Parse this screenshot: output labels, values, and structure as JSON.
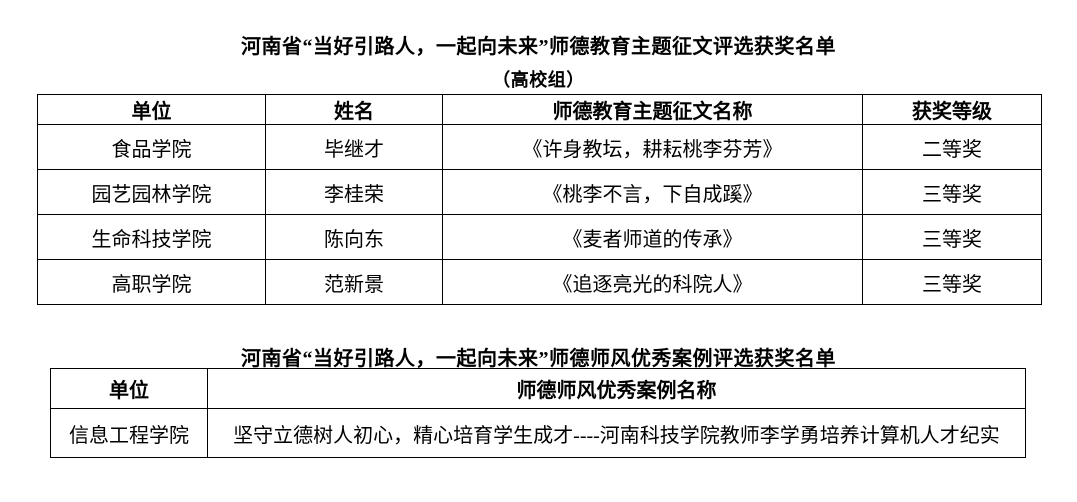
{
  "page": {
    "background_color": "#ffffff",
    "text_color": "#000000",
    "border_color": "#000000"
  },
  "section1": {
    "title": "河南省“当好引路人，一起向未来”师德教育主题征文评选获奖名单",
    "subtitle": "（高校组）",
    "table": {
      "headers": [
        "单位",
        "姓名",
        "师德教育主题征文名称",
        "获奖等级"
      ],
      "rows": [
        [
          "食品学院",
          "毕继才",
          "《许身教坛，耕耘桃李芬芳》",
          "二等奖"
        ],
        [
          "园艺园林学院",
          "李桂荣",
          "《桃李不言，下自成蹊》",
          "三等奖"
        ],
        [
          "生命科技学院",
          "陈向东",
          "《麦者师道的传承》",
          "三等奖"
        ],
        [
          "高职学院",
          "范新景",
          "《追逐亮光的科院人》",
          "三等奖"
        ]
      ]
    }
  },
  "section2": {
    "title": "河南省“当好引路人，一起向未来”师德师风优秀案例评选获奖名单",
    "table": {
      "headers": [
        "单位",
        "师德师风优秀案例名称"
      ],
      "rows": [
        [
          "信息工程学院",
          "坚守立德树人初心，精心培育学生成才----河南科技学院教师李学勇培养计算机人才纪实"
        ]
      ]
    }
  }
}
